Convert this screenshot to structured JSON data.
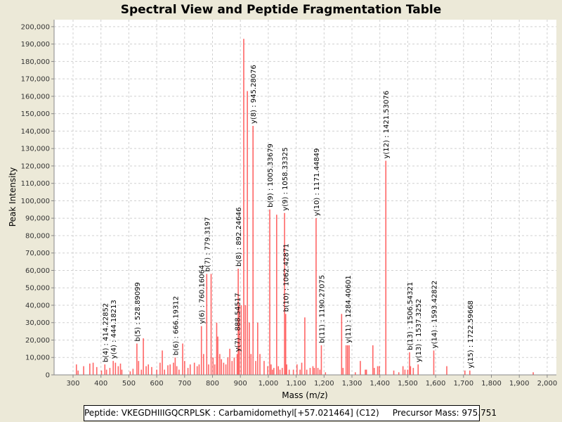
{
  "chart_data": {
    "type": "bar",
    "title": "Spectral View and Peptide Fragmentation Table",
    "xlabel": "Mass (m/z)",
    "ylabel": "Peak Intensity",
    "xlim": [
      232,
      2033
    ],
    "ylim": [
      0,
      204000
    ],
    "grid": true,
    "xticks": [
      300,
      400,
      500,
      600,
      700,
      800,
      900,
      1000,
      1100,
      1200,
      1300,
      1400,
      1500,
      1600,
      1700,
      1800,
      1900,
      2000
    ],
    "xtick_labels": [
      "300",
      "400",
      "500",
      "600",
      "700",
      "800",
      "900",
      "1,000",
      "1,100",
      "1,200",
      "1,300",
      "1,400",
      "1,500",
      "1,600",
      "1,700",
      "1,800",
      "1,900",
      "2,000"
    ],
    "yticks": [
      0,
      10000,
      20000,
      30000,
      40000,
      50000,
      60000,
      70000,
      80000,
      90000,
      100000,
      110000,
      120000,
      130000,
      140000,
      150000,
      160000,
      170000,
      180000,
      190000,
      200000
    ],
    "ytick_labels": [
      "0",
      "10,000",
      "20,000",
      "30,000",
      "40,000",
      "50,000",
      "60,000",
      "70,000",
      "80,000",
      "90,000",
      "100,000",
      "110,000",
      "120,000",
      "130,000",
      "140,000",
      "150,000",
      "160,000",
      "170,000",
      "180,000",
      "190,000",
      "200,000"
    ],
    "peaks": [
      [
        312,
        6000
      ],
      [
        318,
        2500
      ],
      [
        338,
        5000
      ],
      [
        360,
        6500
      ],
      [
        372,
        7000
      ],
      [
        385,
        4500
      ],
      [
        402,
        2500
      ],
      [
        414,
        6000
      ],
      [
        420,
        3000
      ],
      [
        432,
        4000
      ],
      [
        444,
        8000
      ],
      [
        452,
        7000
      ],
      [
        462,
        5000
      ],
      [
        470,
        6500
      ],
      [
        475,
        3000
      ],
      [
        505,
        2000
      ],
      [
        515,
        3500
      ],
      [
        528.9,
        18000
      ],
      [
        535,
        8000
      ],
      [
        545,
        3000
      ],
      [
        552,
        21000
      ],
      [
        562,
        5000
      ],
      [
        570,
        6000
      ],
      [
        582,
        4500
      ],
      [
        600,
        3000
      ],
      [
        612,
        7000
      ],
      [
        620,
        14000
      ],
      [
        628,
        3000
      ],
      [
        640,
        5500
      ],
      [
        648,
        6000
      ],
      [
        660,
        7000
      ],
      [
        666.2,
        10000
      ],
      [
        672,
        5000
      ],
      [
        680,
        3000
      ],
      [
        693,
        18000
      ],
      [
        700,
        8000
      ],
      [
        712,
        4000
      ],
      [
        720,
        6000
      ],
      [
        735,
        7000
      ],
      [
        745,
        5000
      ],
      [
        752,
        6000
      ],
      [
        760.2,
        28000
      ],
      [
        768,
        12000
      ],
      [
        779.3,
        58000
      ],
      [
        786,
        6000
      ],
      [
        795,
        58000
      ],
      [
        802,
        10000
      ],
      [
        808,
        6000
      ],
      [
        815,
        30000
      ],
      [
        819,
        22000
      ],
      [
        826,
        12000
      ],
      [
        832,
        9000
      ],
      [
        840,
        7000
      ],
      [
        848,
        6000
      ],
      [
        855,
        10000
      ],
      [
        862,
        15000
      ],
      [
        870,
        8000
      ],
      [
        878,
        10000
      ],
      [
        888.5,
        12000
      ],
      [
        892.2,
        61000
      ],
      [
        896,
        40000
      ],
      [
        903,
        40000
      ],
      [
        912,
        193000
      ],
      [
        918,
        40000
      ],
      [
        925,
        163000
      ],
      [
        932,
        30000
      ],
      [
        938,
        12000
      ],
      [
        945.3,
        143000
      ],
      [
        955,
        8000
      ],
      [
        962,
        30000
      ],
      [
        970,
        12000
      ],
      [
        985,
        8000
      ],
      [
        998,
        5000
      ],
      [
        1005.3,
        95000
      ],
      [
        1010,
        6000
      ],
      [
        1015,
        3000
      ],
      [
        1020,
        4000
      ],
      [
        1030,
        92000
      ],
      [
        1036,
        5000
      ],
      [
        1042,
        3000
      ],
      [
        1050,
        4000
      ],
      [
        1058.3,
        93000
      ],
      [
        1062.4,
        35000
      ],
      [
        1066,
        6000
      ],
      [
        1075,
        3000
      ],
      [
        1090,
        3000
      ],
      [
        1103,
        6000
      ],
      [
        1114,
        3000
      ],
      [
        1120,
        7000
      ],
      [
        1131,
        33000
      ],
      [
        1138,
        3000
      ],
      [
        1150,
        4000
      ],
      [
        1160,
        5000
      ],
      [
        1165,
        4000
      ],
      [
        1171.4,
        90000
      ],
      [
        1178,
        4000
      ],
      [
        1185,
        3000
      ],
      [
        1190.3,
        17000
      ],
      [
        1205,
        1500
      ],
      [
        1263,
        35000
      ],
      [
        1268,
        4000
      ],
      [
        1279,
        17000
      ],
      [
        1284.4,
        17000
      ],
      [
        1290,
        17000
      ],
      [
        1312,
        1500
      ],
      [
        1330,
        8000
      ],
      [
        1348,
        3000
      ],
      [
        1352,
        3000
      ],
      [
        1375,
        17000
      ],
      [
        1380,
        4000
      ],
      [
        1392,
        5000
      ],
      [
        1398,
        5000
      ],
      [
        1421.5,
        123000
      ],
      [
        1450,
        2500
      ],
      [
        1468,
        1500
      ],
      [
        1483,
        5000
      ],
      [
        1490,
        3000
      ],
      [
        1500,
        3000
      ],
      [
        1506.5,
        13000
      ],
      [
        1510,
        5000
      ],
      [
        1520,
        4000
      ],
      [
        1537.3,
        6000
      ],
      [
        1593.4,
        14000
      ],
      [
        1640,
        5000
      ],
      [
        1705,
        2500
      ],
      [
        1722.6,
        2500
      ],
      [
        1950,
        1500
      ]
    ],
    "annotations": [
      {
        "label": "b(4) : 414.22852",
        "mz": 414.22852,
        "intensity": 6000
      },
      {
        "label": "y(4) : 444.18213",
        "mz": 444.18213,
        "intensity": 8000
      },
      {
        "label": "b(5) : 528.89099",
        "mz": 528.89099,
        "intensity": 18000
      },
      {
        "label": "b(6) : 666.19312",
        "mz": 666.19312,
        "intensity": 10000
      },
      {
        "label": "y(6) : 760.16064",
        "mz": 760.16064,
        "intensity": 28000
      },
      {
        "label": "b(7) : 779.3197",
        "mz": 779.3197,
        "intensity": 58000
      },
      {
        "label": "y(7) : 888.54517",
        "mz": 888.54517,
        "intensity": 12000
      },
      {
        "label": "b(8) : 892.24646",
        "mz": 892.24646,
        "intensity": 61000
      },
      {
        "label": "y(8) : 945.28076",
        "mz": 945.28076,
        "intensity": 143000
      },
      {
        "label": "b(9) : 1005.33679",
        "mz": 1005.33679,
        "intensity": 95000
      },
      {
        "label": "y(9) : 1058.33325",
        "mz": 1058.33325,
        "intensity": 93000
      },
      {
        "label": "b(10) : 1062.42871",
        "mz": 1062.42871,
        "intensity": 35000
      },
      {
        "label": "y(10) : 1171.44849",
        "mz": 1171.44849,
        "intensity": 90000
      },
      {
        "label": "b(11) : 1190.27075",
        "mz": 1190.27075,
        "intensity": 17000
      },
      {
        "label": "y(11) : 1284.40601",
        "mz": 1284.40601,
        "intensity": 17000
      },
      {
        "label": "y(12) : 1421.53076",
        "mz": 1421.53076,
        "intensity": 123000
      },
      {
        "label": "b(13) : 1506.54321",
        "mz": 1506.54321,
        "intensity": 13000
      },
      {
        "label": "y(13) : 1537.3252",
        "mz": 1537.3252,
        "intensity": 6000
      },
      {
        "label": "y(14) : 1593.42822",
        "mz": 1593.42822,
        "intensity": 14000
      },
      {
        "label": "y(15) : 1722.59668",
        "mz": 1722.59668,
        "intensity": 2500
      }
    ],
    "colors": {
      "peak": "#ff4040",
      "background": "#ece9d8",
      "grid": "#d0d0d0"
    }
  },
  "footer": {
    "peptide": "Peptide: VKEGDHIIIGQCRPLSK : Carbamidomethyl[+57.021464] (C12)",
    "precursor": "Precursor Mass: 975.751"
  }
}
